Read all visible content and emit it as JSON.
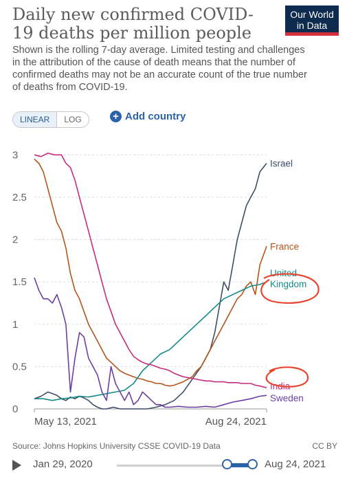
{
  "header": {
    "title": "Daily new confirmed COVID-19 deaths per million people",
    "subtitle": "Shown is the rolling 7-day average. Limited testing and challenges in the attribution of the cause of death means that the number of confirmed deaths may not be an accurate count of the true number of deaths from COVID-19.",
    "logo_line1": "Our World",
    "logo_line2": "in Data"
  },
  "controls": {
    "linear_label": "LINEAR",
    "log_label": "LOG",
    "add_country_label": "Add country"
  },
  "footer": {
    "source": "Source: Johns Hopkins University CSSE COVID-19 Data",
    "license": "CC BY"
  },
  "timeline": {
    "start_label": "Jan 29, 2020",
    "end_label": "Aug 24, 2021",
    "range_start": "2021-05-13",
    "range_end": "2021-08-24"
  },
  "colors": {
    "Israel": "#3c4e66",
    "France": "#b5531a",
    "United Kingdom": "#148b87",
    "India": "#c42b7c",
    "Sweden": "#6b3ea0",
    "annotation": "#e8452f"
  },
  "chart_data": {
    "type": "line",
    "title": "Daily new confirmed COVID-19 deaths per million people",
    "xlabel": "",
    "ylabel": "",
    "x_ticks": [
      "May 13, 2021",
      "Aug 24, 2021"
    ],
    "y_ticks": [
      "0",
      "0.5",
      "1",
      "1.5",
      "2",
      "2.5",
      "3"
    ],
    "ylim": [
      0,
      3.1
    ],
    "x_range_days": [
      0,
      103
    ],
    "grid": true,
    "legend": "inline-right",
    "series": [
      {
        "name": "Israel",
        "label": "Israel",
        "points": [
          [
            0,
            0.12
          ],
          [
            3,
            0.15
          ],
          [
            6,
            0.2
          ],
          [
            8,
            0.18
          ],
          [
            10,
            0.16
          ],
          [
            12,
            0.12
          ],
          [
            14,
            0.1
          ],
          [
            16,
            0.14
          ],
          [
            18,
            0.12
          ],
          [
            20,
            0.15
          ],
          [
            22,
            0.13
          ],
          [
            24,
            0.1
          ],
          [
            26,
            0.05
          ],
          [
            28,
            0.02
          ],
          [
            30,
            0.0
          ],
          [
            32,
            0.0
          ],
          [
            35,
            0.02
          ],
          [
            38,
            0.0
          ],
          [
            42,
            0.0
          ],
          [
            46,
            0.0
          ],
          [
            50,
            0.0
          ],
          [
            54,
            0.02
          ],
          [
            58,
            0.05
          ],
          [
            62,
            0.1
          ],
          [
            66,
            0.2
          ],
          [
            70,
            0.35
          ],
          [
            74,
            0.5
          ],
          [
            78,
            0.7
          ],
          [
            80,
            0.9
          ],
          [
            82,
            1.2
          ],
          [
            84,
            1.5
          ],
          [
            86,
            1.4
          ],
          [
            88,
            1.7
          ],
          [
            90,
            2.0
          ],
          [
            92,
            2.2
          ],
          [
            94,
            2.4
          ],
          [
            96,
            2.5
          ],
          [
            98,
            2.6
          ],
          [
            100,
            2.8
          ],
          [
            103,
            2.9
          ]
        ]
      },
      {
        "name": "France",
        "label": "France",
        "points": [
          [
            0,
            2.95
          ],
          [
            2,
            2.9
          ],
          [
            4,
            2.8
          ],
          [
            6,
            2.6
          ],
          [
            8,
            2.4
          ],
          [
            10,
            2.2
          ],
          [
            12,
            2.1
          ],
          [
            14,
            1.9
          ],
          [
            16,
            1.6
          ],
          [
            18,
            1.4
          ],
          [
            20,
            1.3
          ],
          [
            22,
            1.15
          ],
          [
            24,
            1.0
          ],
          [
            26,
            0.9
          ],
          [
            28,
            0.8
          ],
          [
            30,
            0.7
          ],
          [
            32,
            0.6
          ],
          [
            34,
            0.55
          ],
          [
            36,
            0.5
          ],
          [
            38,
            0.45
          ],
          [
            40,
            0.42
          ],
          [
            42,
            0.4
          ],
          [
            44,
            0.38
          ],
          [
            46,
            0.36
          ],
          [
            48,
            0.35
          ],
          [
            50,
            0.33
          ],
          [
            52,
            0.32
          ],
          [
            54,
            0.3
          ],
          [
            56,
            0.3
          ],
          [
            58,
            0.28
          ],
          [
            60,
            0.27
          ],
          [
            62,
            0.28
          ],
          [
            64,
            0.3
          ],
          [
            66,
            0.32
          ],
          [
            68,
            0.35
          ],
          [
            70,
            0.38
          ],
          [
            72,
            0.45
          ],
          [
            74,
            0.5
          ],
          [
            76,
            0.6
          ],
          [
            78,
            0.7
          ],
          [
            80,
            0.8
          ],
          [
            82,
            0.9
          ],
          [
            84,
            1.0
          ],
          [
            86,
            1.1
          ],
          [
            88,
            1.2
          ],
          [
            90,
            1.3
          ],
          [
            92,
            1.35
          ],
          [
            94,
            1.45
          ],
          [
            96,
            1.5
          ],
          [
            98,
            1.35
          ],
          [
            100,
            1.7
          ],
          [
            103,
            1.92
          ]
        ]
      },
      {
        "name": "United Kingdom",
        "label": "United Kingdom",
        "points": [
          [
            0,
            0.12
          ],
          [
            4,
            0.12
          ],
          [
            8,
            0.1
          ],
          [
            12,
            0.12
          ],
          [
            16,
            0.13
          ],
          [
            20,
            0.15
          ],
          [
            24,
            0.14
          ],
          [
            28,
            0.16
          ],
          [
            32,
            0.18
          ],
          [
            36,
            0.2
          ],
          [
            40,
            0.22
          ],
          [
            44,
            0.3
          ],
          [
            48,
            0.45
          ],
          [
            52,
            0.55
          ],
          [
            56,
            0.65
          ],
          [
            60,
            0.7
          ],
          [
            64,
            0.8
          ],
          [
            68,
            0.9
          ],
          [
            72,
            1.0
          ],
          [
            76,
            1.1
          ],
          [
            80,
            1.2
          ],
          [
            84,
            1.3
          ],
          [
            88,
            1.35
          ],
          [
            92,
            1.4
          ],
          [
            96,
            1.45
          ],
          [
            100,
            1.47
          ],
          [
            103,
            1.5
          ]
        ]
      },
      {
        "name": "India",
        "label": "India",
        "points": [
          [
            0,
            3.0
          ],
          [
            3,
            2.98
          ],
          [
            6,
            3.02
          ],
          [
            9,
            3.0
          ],
          [
            12,
            3.0
          ],
          [
            14,
            2.9
          ],
          [
            16,
            2.85
          ],
          [
            18,
            2.7
          ],
          [
            20,
            2.5
          ],
          [
            22,
            2.3
          ],
          [
            24,
            2.1
          ],
          [
            26,
            1.9
          ],
          [
            28,
            1.7
          ],
          [
            30,
            1.5
          ],
          [
            32,
            1.3
          ],
          [
            34,
            1.15
          ],
          [
            36,
            1.0
          ],
          [
            38,
            0.9
          ],
          [
            40,
            0.8
          ],
          [
            42,
            0.7
          ],
          [
            44,
            0.62
          ],
          [
            46,
            0.58
          ],
          [
            48,
            0.55
          ],
          [
            50,
            0.53
          ],
          [
            52,
            0.52
          ],
          [
            54,
            0.5
          ],
          [
            56,
            0.48
          ],
          [
            58,
            0.47
          ],
          [
            60,
            0.45
          ],
          [
            62,
            0.42
          ],
          [
            64,
            0.4
          ],
          [
            66,
            0.38
          ],
          [
            68,
            0.37
          ],
          [
            70,
            0.36
          ],
          [
            72,
            0.35
          ],
          [
            74,
            0.34
          ],
          [
            76,
            0.33
          ],
          [
            78,
            0.33
          ],
          [
            80,
            0.32
          ],
          [
            82,
            0.32
          ],
          [
            84,
            0.32
          ],
          [
            86,
            0.31
          ],
          [
            88,
            0.31
          ],
          [
            90,
            0.31
          ],
          [
            92,
            0.3
          ],
          [
            94,
            0.3
          ],
          [
            96,
            0.3
          ],
          [
            98,
            0.28
          ],
          [
            100,
            0.27
          ],
          [
            103,
            0.25
          ]
        ]
      },
      {
        "name": "Sweden",
        "label": "Sweden",
        "points": [
          [
            0,
            1.55
          ],
          [
            2,
            1.4
          ],
          [
            4,
            1.3
          ],
          [
            6,
            1.3
          ],
          [
            8,
            1.25
          ],
          [
            10,
            1.35
          ],
          [
            12,
            1.2
          ],
          [
            14,
            1.0
          ],
          [
            16,
            0.2
          ],
          [
            18,
            0.6
          ],
          [
            20,
            0.9
          ],
          [
            22,
            0.85
          ],
          [
            24,
            0.6
          ],
          [
            26,
            0.5
          ],
          [
            28,
            0.4
          ],
          [
            30,
            0.2
          ],
          [
            32,
            0.1
          ],
          [
            34,
            0.5
          ],
          [
            36,
            0.3
          ],
          [
            38,
            0.2
          ],
          [
            40,
            0.1
          ],
          [
            42,
            0.2
          ],
          [
            44,
            0.05
          ],
          [
            46,
            0.1
          ],
          [
            48,
            0.2
          ],
          [
            50,
            0.15
          ],
          [
            52,
            0.1
          ],
          [
            54,
            0.05
          ],
          [
            56,
            0.05
          ],
          [
            58,
            0.02
          ],
          [
            60,
            0.02
          ],
          [
            64,
            0.03
          ],
          [
            68,
            0.02
          ],
          [
            72,
            0.02
          ],
          [
            76,
            0.03
          ],
          [
            80,
            0.02
          ],
          [
            84,
            0.05
          ],
          [
            88,
            0.08
          ],
          [
            92,
            0.1
          ],
          [
            96,
            0.12
          ],
          [
            100,
            0.15
          ],
          [
            103,
            0.16
          ]
        ]
      }
    ]
  }
}
